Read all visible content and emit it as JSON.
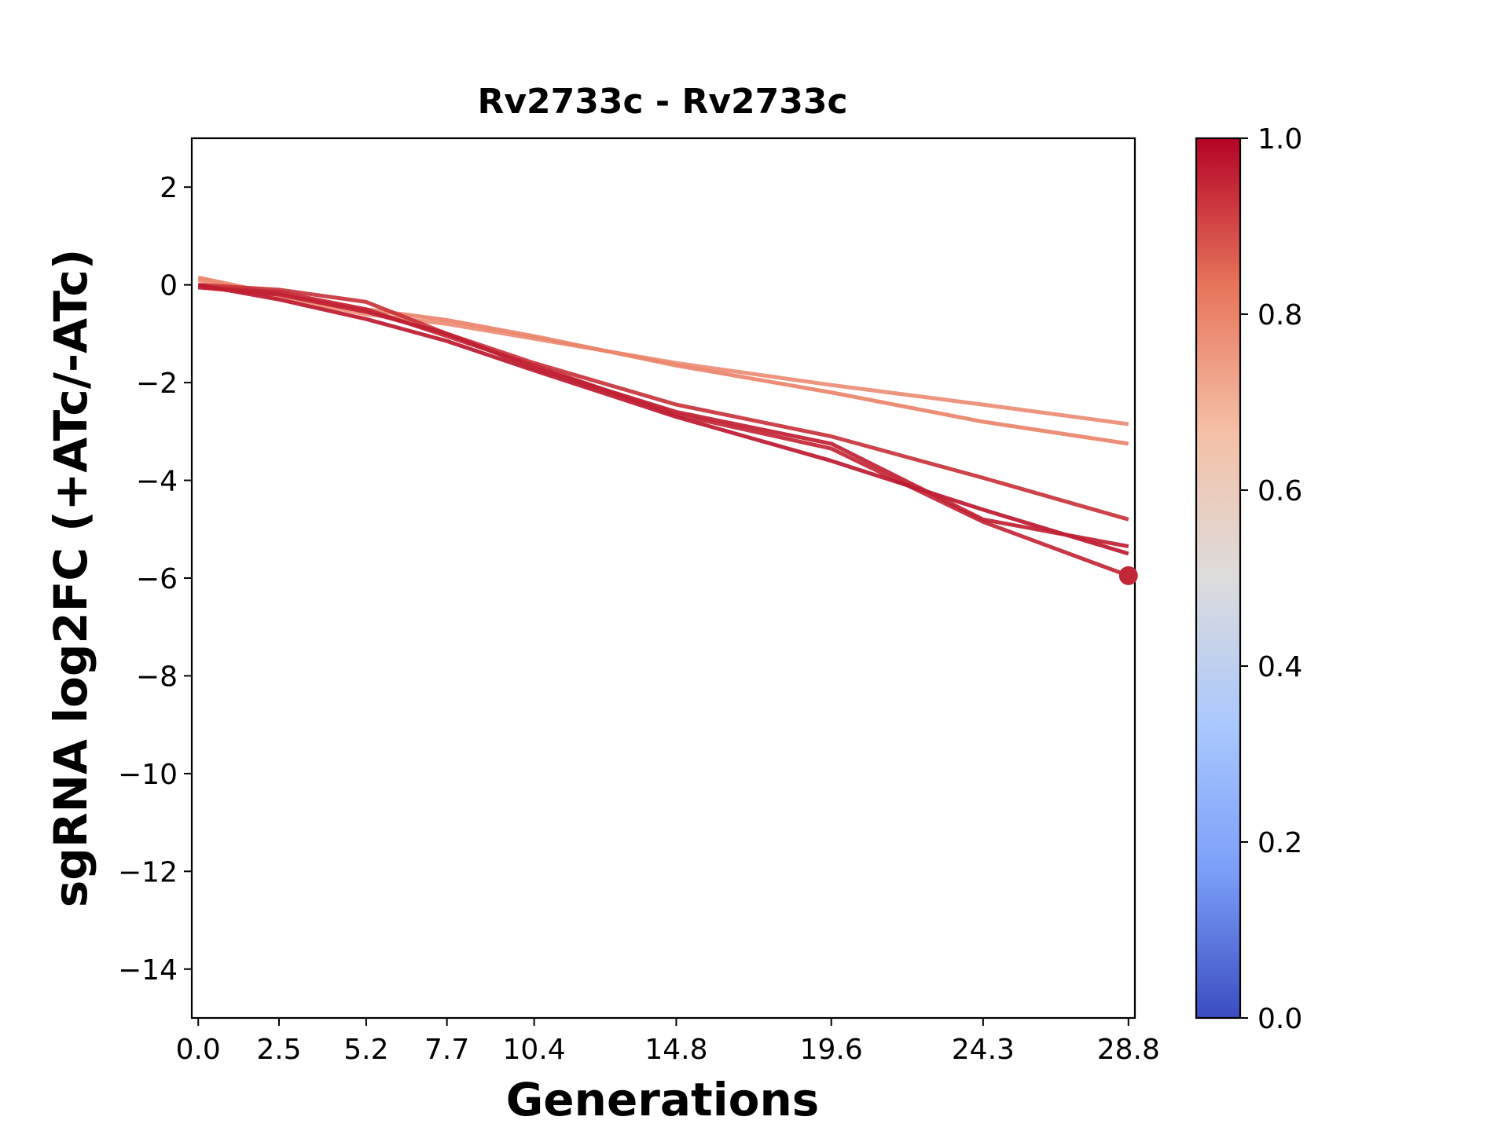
{
  "chart_data": {
    "type": "line",
    "title": "Rv2733c - Rv2733c",
    "xlabel": "Generations",
    "ylabel": "sgRNA log2FC (+ATc/-ATc)",
    "x_ticks": [
      "0.0",
      "2.5",
      "5.2",
      "7.7",
      "10.4",
      "14.8",
      "19.6",
      "24.3",
      "28.8"
    ],
    "y_ticks": [
      "2",
      "0",
      "−2",
      "−4",
      "−6",
      "−8",
      "−10",
      "−12",
      "−14"
    ],
    "xlim": [
      -0.2,
      29.0
    ],
    "ylim": [
      -15.0,
      3.0
    ],
    "grid": false,
    "series": [
      {
        "color_value": 0.78,
        "x": [
          0.0,
          2.5,
          5.2,
          7.7,
          10.4,
          14.8,
          19.6,
          24.3,
          28.8
        ],
        "y": [
          0.1,
          -0.25,
          -0.6,
          -0.8,
          -1.1,
          -1.6,
          -2.05,
          -2.45,
          -2.85
        ]
      },
      {
        "color_value": 0.8,
        "x": [
          0.0,
          2.5,
          5.2,
          7.7,
          10.4,
          14.8,
          19.6,
          24.3,
          28.8
        ],
        "y": [
          0.15,
          -0.2,
          -0.5,
          -0.72,
          -1.05,
          -1.65,
          -2.2,
          -2.8,
          -3.25
        ]
      },
      {
        "color_value": 0.93,
        "x": [
          0.0,
          2.5,
          5.2,
          7.7,
          10.4,
          14.8,
          19.6,
          24.3,
          28.8
        ],
        "y": [
          0.0,
          -0.1,
          -0.35,
          -1.0,
          -1.6,
          -2.45,
          -3.1,
          -3.95,
          -4.8
        ]
      },
      {
        "color_value": 0.95,
        "x": [
          0.0,
          2.5,
          5.2,
          7.7,
          10.4,
          14.8,
          19.6,
          24.3,
          28.8
        ],
        "y": [
          -0.05,
          -0.15,
          -0.5,
          -1.05,
          -1.65,
          -2.65,
          -3.35,
          -4.85,
          -5.95
        ]
      },
      {
        "color_value": 0.97,
        "x": [
          0.0,
          2.5,
          5.2,
          7.7,
          10.4,
          14.8,
          19.6,
          24.3,
          28.8
        ],
        "y": [
          0.0,
          -0.3,
          -0.7,
          -1.15,
          -1.75,
          -2.7,
          -3.6,
          -4.6,
          -5.5
        ]
      },
      {
        "color_value": 0.96,
        "x": [
          0.0,
          2.5,
          5.2,
          7.7,
          10.4,
          14.8,
          19.6,
          24.3,
          28.8
        ],
        "y": [
          -0.05,
          -0.2,
          -0.55,
          -1.0,
          -1.7,
          -2.6,
          -3.25,
          -4.8,
          -5.35
        ]
      }
    ],
    "marker": {
      "x": 28.8,
      "y": -5.95,
      "color_value": 0.95
    },
    "colorbar": {
      "colormap": "coolwarm",
      "range": [
        0.0,
        1.0
      ],
      "tick_labels": [
        "1.0",
        "0.8",
        "0.6",
        "0.4",
        "0.2",
        "0.0"
      ],
      "stops": [
        "#b40426",
        "#e7745b",
        "#f5c0a6",
        "#dddcdc",
        "#aac7fd",
        "#7b9ff9",
        "#3b4cc0"
      ]
    }
  }
}
